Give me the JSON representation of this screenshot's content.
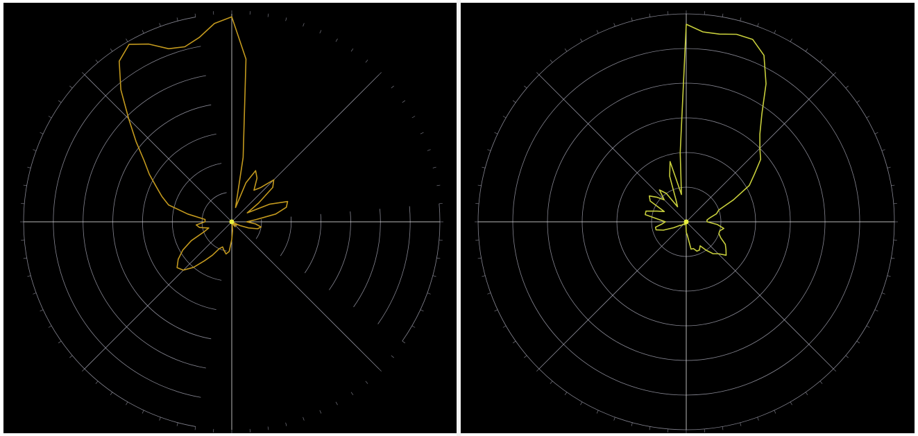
{
  "colors": {
    "background": "#000000",
    "grid": "#a9a9b8",
    "axis": "#d9d9d9",
    "trace_left": "#c49a1e",
    "trace_right": "#c8cf3c",
    "origin_marker": "#e8f040"
  },
  "chart_data": [
    {
      "type": "polar-line",
      "chart": "left",
      "title": "",
      "radial_rings": 7,
      "radial_max": 7,
      "spokes_deg": [
        0,
        45,
        90,
        135,
        180,
        225,
        270,
        315
      ],
      "grid_style": "partial-arcs",
      "series": [
        {
          "angle_deg": [
            90,
            95,
            100,
            105,
            110,
            115,
            120,
            125,
            130,
            135,
            140,
            145,
            150,
            155,
            160,
            165,
            170,
            175,
            180,
            185,
            190,
            195,
            200,
            205,
            210,
            215,
            220,
            225,
            230,
            235,
            240,
            245,
            250,
            255,
            260,
            265,
            270,
            275,
            280,
            285,
            290,
            295,
            300,
            305,
            310,
            315,
            320,
            325,
            330,
            335,
            340,
            345,
            350,
            355,
            360,
            5,
            10,
            15,
            20,
            25,
            30,
            35,
            40,
            45,
            50,
            55,
            60,
            65,
            70,
            75,
            80,
            85
          ],
          "radius": [
            6.9,
            6.7,
            6.3,
            6.1,
            6.2,
            6.6,
            6.9,
            6.6,
            5.8,
            4.9,
            4.2,
            3.6,
            3.2,
            2.8,
            2.5,
            2.2,
            1.5,
            0.9,
            0.9,
            1.2,
            1.1,
            0.8,
            1.0,
            1.5,
            1.9,
            2.2,
            2.4,
            2.3,
            2.0,
            1.6,
            1.3,
            1.0,
            0.9,
            1.0,
            1.1,
            1.0,
            0.6,
            0.3,
            0.1,
            0.1,
            0.1,
            0.1,
            0.1,
            0.2,
            0.1,
            0.1,
            0.1,
            0.2,
            0.0,
            0.3,
            0.6,
            0.9,
            1.0,
            0.8,
            0.5,
            0.8,
            1.5,
            1.9,
            2.0,
            1.4,
            0.6,
            1.1,
            1.8,
            2.0,
            1.5,
            1.3,
            1.7,
            1.9,
            1.4,
            0.5,
            2.2,
            5.5
          ]
        }
      ]
    },
    {
      "type": "polar-line",
      "chart": "right",
      "title": "",
      "radial_rings": 6,
      "radial_max": 6,
      "spokes_deg": [
        0,
        45,
        90,
        135,
        180,
        225,
        270,
        315
      ],
      "grid_style": "full-circles",
      "series": [
        {
          "angle_deg": [
            90,
            85,
            80,
            75,
            70,
            65,
            60,
            55,
            50,
            45,
            40,
            35,
            30,
            25,
            20,
            15,
            10,
            5,
            0,
            355,
            350,
            345,
            340,
            335,
            330,
            325,
            320,
            315,
            310,
            305,
            300,
            295,
            290,
            285,
            280,
            275,
            270,
            265,
            260,
            255,
            250,
            245,
            240,
            235,
            230,
            225,
            220,
            215,
            210,
            205,
            200,
            195,
            190,
            185,
            180,
            175,
            170,
            165,
            160,
            155,
            150,
            145,
            140,
            135,
            130,
            125,
            120,
            115,
            110,
            105,
            100,
            95
          ],
          "radius": [
            5.7,
            5.5,
            5.5,
            5.6,
            5.6,
            5.3,
            4.6,
            3.8,
            3.3,
            3.0,
            2.8,
            2.4,
            2.1,
            1.5,
            1.0,
            0.9,
            0.7,
            0.6,
            0.6,
            0.9,
            1.1,
            1.0,
            1.0,
            1.1,
            1.3,
            1.4,
            1.5,
            1.3,
            1.2,
            1.0,
            0.8,
            0.9,
            0.9,
            0.8,
            0.8,
            0.4,
            0.3,
            0.1,
            0.0,
            0.0,
            0.0,
            0.0,
            0.1,
            0.0,
            0.1,
            0.1,
            0.1,
            0.2,
            0.2,
            0.4,
            0.7,
            0.9,
            0.9,
            0.7,
            0.6,
            0.8,
            1.2,
            1.2,
            0.9,
            0.7,
            1.2,
            1.3,
            1.1,
            0.9,
            1.2,
            1.0,
            0.5,
            0.7,
            1.4,
            1.8,
            0.8,
            2.0
          ]
        }
      ]
    }
  ]
}
